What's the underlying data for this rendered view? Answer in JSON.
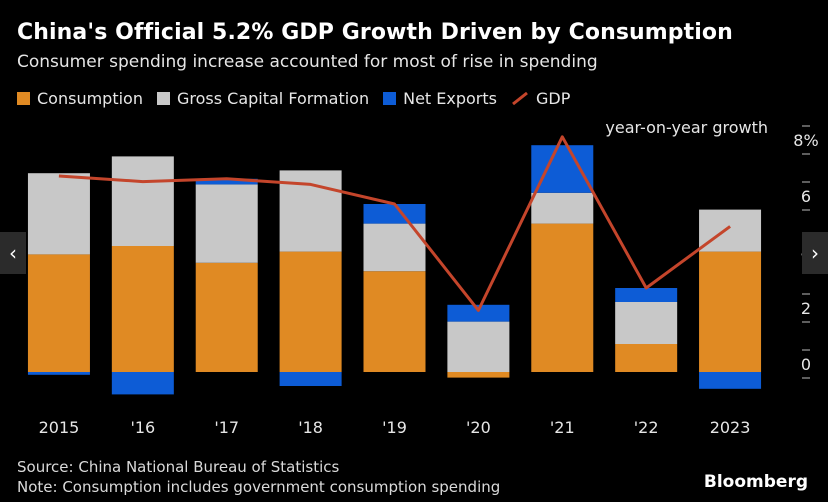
{
  "header": {
    "title": "China's Official 5.2% GDP Growth Driven by Consumption",
    "subtitle": "Consumer spending increase accounted for most of rise in spending"
  },
  "legend": [
    {
      "label": "Consumption",
      "color": "#E08A23",
      "kind": "box"
    },
    {
      "label": "Gross Capital Formation",
      "color": "#C8C8C8",
      "kind": "box"
    },
    {
      "label": "Net Exports",
      "color": "#0D5CD6",
      "kind": "box"
    },
    {
      "label": "GDP",
      "color": "#C4452B",
      "kind": "line"
    }
  ],
  "annotation": "year-on-year growth",
  "footer": {
    "source": "Source: China National Bureau of Statistics",
    "note": "Note: Consumption includes government consumption spending",
    "brand": "Bloomberg"
  },
  "nav": {
    "prev_icon": "‹",
    "next_icon": "›"
  },
  "chart_data": {
    "type": "bar",
    "stacked": true,
    "categories": [
      "2015",
      "'16",
      "'17",
      "'18",
      "'19",
      "'20",
      "'21",
      "'22",
      "2023"
    ],
    "series": [
      {
        "name": "Consumption",
        "color": "#E08A23",
        "values": [
          4.2,
          4.5,
          3.9,
          4.3,
          3.6,
          -0.2,
          5.3,
          1.0,
          4.3
        ]
      },
      {
        "name": "Gross Capital Formation",
        "color": "#C8C8C8",
        "values": [
          2.9,
          3.2,
          2.8,
          2.9,
          1.7,
          1.8,
          1.1,
          1.5,
          1.5
        ]
      },
      {
        "name": "Net Exports",
        "color": "#0D5CD6",
        "values": [
          -0.1,
          -0.8,
          0.2,
          -0.5,
          0.7,
          0.6,
          1.7,
          0.5,
          -0.6
        ]
      }
    ],
    "line": {
      "name": "GDP",
      "color": "#C4452B",
      "values": [
        7.0,
        6.8,
        6.9,
        6.7,
        6.0,
        2.2,
        8.4,
        3.0,
        5.2
      ]
    },
    "yticks": [
      "0",
      "2",
      "4",
      "6",
      "8%"
    ],
    "ytick_values": [
      0,
      2,
      4,
      6,
      8
    ],
    "ylim": [
      -1,
      8.5
    ],
    "ylabel": "year-on-year growth",
    "axis_side": "right",
    "grid": false,
    "legend_position": "top"
  }
}
